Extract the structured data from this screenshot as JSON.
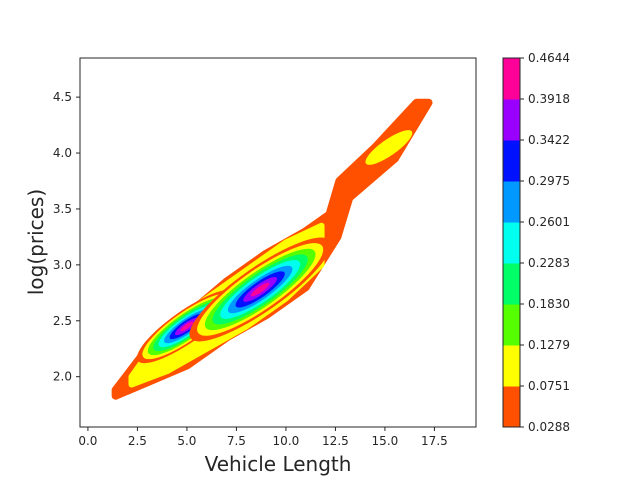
{
  "chart_data": {
    "type": "contour",
    "title": "",
    "xlabel": "Vehicle Length",
    "ylabel": "log(prices)",
    "xlim": [
      -0.4,
      19.6
    ],
    "ylim": [
      1.55,
      4.85
    ],
    "x_ticks": [
      "0.0",
      "2.5",
      "5.0",
      "7.5",
      "10.0",
      "12.5",
      "15.0",
      "17.5"
    ],
    "y_ticks": [
      "2.0",
      "2.5",
      "3.0",
      "3.5",
      "4.0",
      "4.5"
    ],
    "grid": false,
    "colorbar": {
      "levels": [
        "0.0288",
        "0.0751",
        "0.1279",
        "0.1830",
        "0.2283",
        "0.2601",
        "0.2975",
        "0.3422",
        "0.3918",
        "0.4644"
      ],
      "colors": [
        "#ff5000",
        "#ffff00",
        "#55ff00",
        "#00ff66",
        "#00ffee",
        "#0099ff",
        "#0011ff",
        "#9a00ff",
        "#ff0099"
      ]
    },
    "density_peaks": [
      {
        "x": 5.0,
        "y": 2.45,
        "max_density": 0.4644
      },
      {
        "x": 8.7,
        "y": 2.78,
        "max_density": 0.4644
      },
      {
        "x": 15.2,
        "y": 4.05,
        "max_density": 0.1279
      }
    ]
  }
}
